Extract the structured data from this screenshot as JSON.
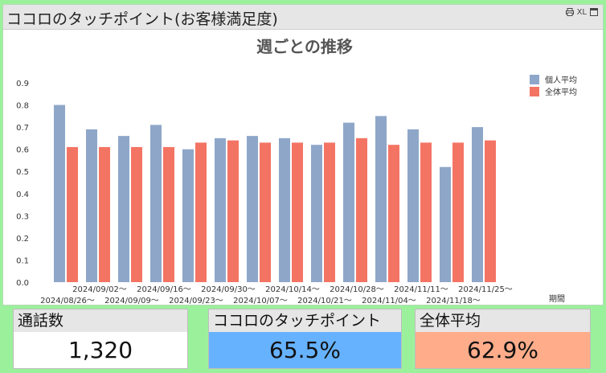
{
  "panel": {
    "title": "ココロのタッチポイント(お客様満足度)",
    "icons": [
      "print-icon",
      "excel-export-icon",
      "maximize-icon"
    ],
    "icon_text": {
      "xl": "XL"
    }
  },
  "chart_data": {
    "type": "bar",
    "title": "週ごとの推移",
    "xlabel": "期間",
    "ylabel": "",
    "ylim": [
      0,
      0.9
    ],
    "yticks": [
      "0.0",
      "0.1",
      "0.2",
      "0.3",
      "0.4",
      "0.5",
      "0.6",
      "0.7",
      "0.8",
      "0.9"
    ],
    "categories": [
      "2024/08/26～",
      "2024/09/02～",
      "2024/09/09～",
      "2024/09/16～",
      "2024/09/23～",
      "2024/09/30～",
      "2024/10/07～",
      "2024/10/14～",
      "2024/10/21～",
      "2024/10/28～",
      "2024/11/04～",
      "2024/11/11～",
      "2024/11/18～",
      "2024/11/25～"
    ],
    "series": [
      {
        "name": "個人平均",
        "color": "#8ea7c9",
        "values": [
          0.8,
          0.69,
          0.66,
          0.71,
          0.6,
          0.65,
          0.66,
          0.65,
          0.62,
          0.72,
          0.75,
          0.69,
          0.52,
          0.7
        ]
      },
      {
        "name": "全体平均",
        "color": "#f47464",
        "values": [
          0.61,
          0.61,
          0.61,
          0.61,
          0.63,
          0.64,
          0.63,
          0.63,
          0.63,
          0.65,
          0.62,
          0.63,
          0.63,
          0.64
        ]
      }
    ],
    "legend_position": "top-right",
    "grid": false
  },
  "stats": [
    {
      "label": "通話数",
      "value": "1,320",
      "bg": "#ffffff"
    },
    {
      "label": "ココロのタッチポイント",
      "value": "65.5%",
      "bg": "#66b2ff"
    },
    {
      "label": "全体平均",
      "value": "62.9%",
      "bg": "#ffac8a"
    }
  ]
}
